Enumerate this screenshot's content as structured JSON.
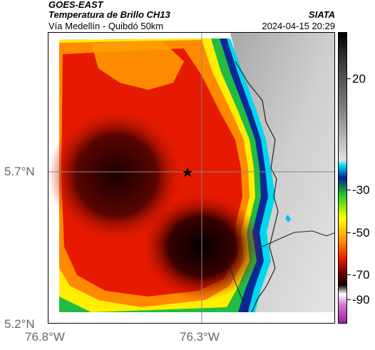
{
  "header": {
    "satellite": "GOES-EAST",
    "product": "Temperatura de Brillo CH13",
    "route": "Vía Medellín - Quibdó 50km",
    "brand": "SIATA",
    "datetime": "2024-04-15 20:29"
  },
  "map": {
    "lat_labels": [
      "5.7°N",
      "5.2°N"
    ],
    "lon_labels": [
      "76.8°W",
      "76.3°W"
    ],
    "marker_icon": "star-icon",
    "colors": {
      "frame": "#000000",
      "gridline": "#888888",
      "coastline": "#222222",
      "marker": "#000000"
    }
  },
  "colorbar": {
    "labels": [
      "20",
      "-30",
      "-50",
      "-70",
      "-90"
    ],
    "unit_colors": [
      "#000000",
      "#6b6b6b",
      "#d6d6d6",
      "#00e5ff",
      "#0a1e8c",
      "#22cc22",
      "#ffff00",
      "#ff8800",
      "#e61a00",
      "#3a0000",
      "#c03cc0"
    ]
  }
}
